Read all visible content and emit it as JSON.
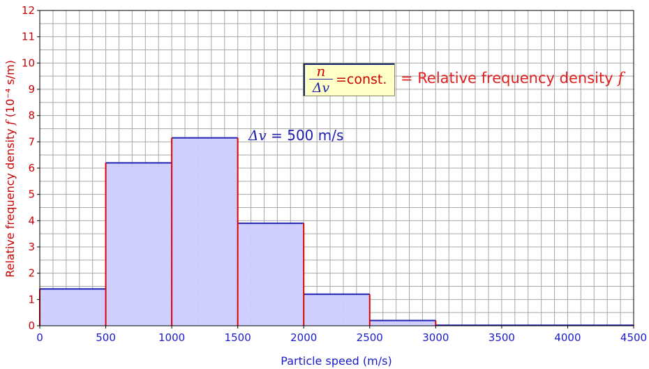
{
  "chart_data": {
    "type": "bar",
    "histogram": true,
    "bin_width": 500,
    "bins": [
      {
        "x0": 0,
        "x1": 500,
        "value": 1.4
      },
      {
        "x0": 500,
        "x1": 1000,
        "value": 6.2
      },
      {
        "x0": 1000,
        "x1": 1500,
        "value": 7.15
      },
      {
        "x0": 1500,
        "x1": 2000,
        "value": 3.9
      },
      {
        "x0": 2000,
        "x1": 2500,
        "value": 1.2
      },
      {
        "x0": 2500,
        "x1": 3000,
        "value": 0.2
      },
      {
        "x0": 3000,
        "x1": 4500,
        "value": 0.02
      }
    ],
    "xlim": [
      0,
      4500
    ],
    "ylim": [
      0,
      12
    ],
    "x_ticks": [
      0,
      500,
      1000,
      1500,
      2000,
      2500,
      3000,
      3500,
      4000,
      4500
    ],
    "y_ticks": [
      0,
      1,
      2,
      3,
      4,
      5,
      6,
      7,
      8,
      9,
      10,
      11,
      12
    ],
    "x_minor_step": 100,
    "y_minor_step": 0.5,
    "grid": true,
    "xlabel": "Particle speed (m/s)",
    "ylabel_prefix": "Relative frequency density ",
    "ylabel_symbol": "f",
    "ylabel_units": " (10⁻⁴ s/m)",
    "annotations": {
      "bin_width_symbol": "Δv",
      "bin_width_text": " = 500 m/s",
      "formula_numerator": "n",
      "formula_denominator": "Δv",
      "formula_rest": "=const.",
      "equals_text": "= Relative frequency density ",
      "equals_symbol": "f"
    },
    "colors": {
      "bar_fill": "#ccccff",
      "bar_top": "#2020b0",
      "bar_side": "#e00000",
      "grid": "#a8a8a8",
      "axis_box": "#000000",
      "tick_y": "#cc0000",
      "tick_x": "#1a1acc"
    }
  }
}
